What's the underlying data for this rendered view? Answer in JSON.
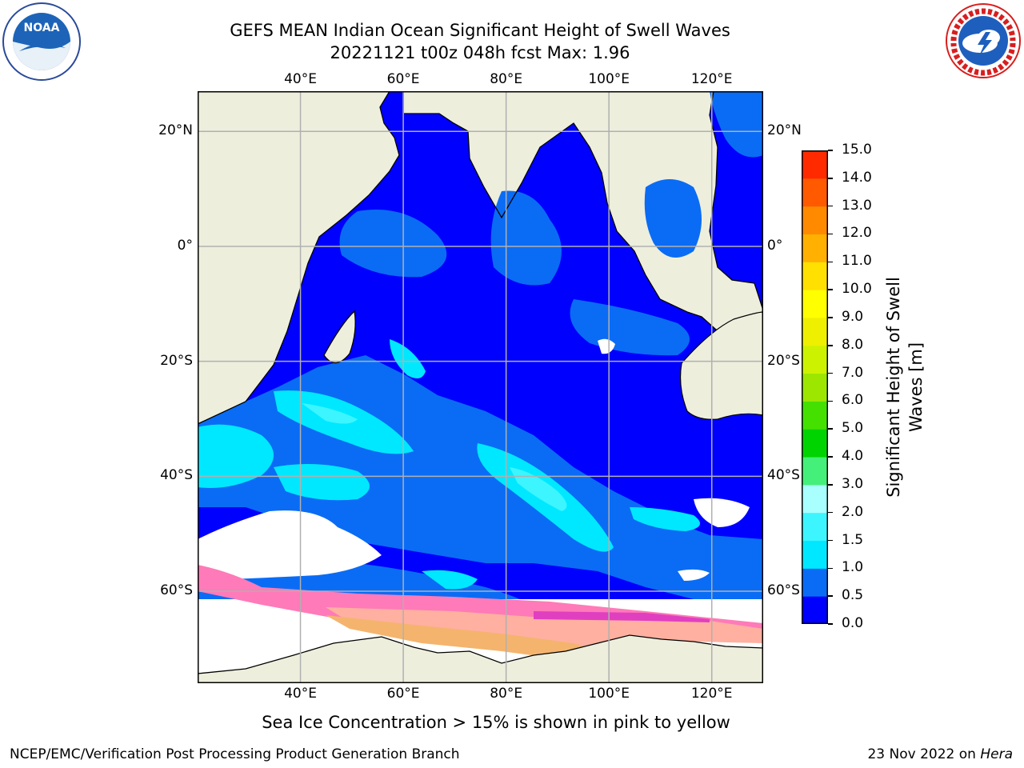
{
  "title": {
    "line1": "GEFS MEAN Indian Ocean Significant Height of Swell Waves",
    "line2": "20221121 t00z 048h fcst   Max: 1.96"
  },
  "logos": {
    "left": {
      "icon": "noaa-logo-icon",
      "text": "NOAA"
    },
    "right": {
      "icon": "nws-logo-icon",
      "ring_text": "NATIONAL WEATHER SERVICE"
    }
  },
  "map": {
    "lon_range": [
      20,
      130
    ],
    "lat_range": [
      -76,
      27
    ],
    "lon_ticks": [
      "40°E",
      "60°E",
      "80°E",
      "100°E",
      "120°E"
    ],
    "lat_ticks": [
      "20°N",
      "0°",
      "20°S",
      "40°S",
      "60°S"
    ],
    "lon_values": [
      40,
      60,
      80,
      100,
      120
    ],
    "lat_values": [
      20,
      0,
      -20,
      -40,
      -60
    ],
    "colors": {
      "land": "#eeeedd",
      "grid": "#b0b0b0",
      "coast": "#000000"
    }
  },
  "colorbar": {
    "title": "Significant Height of Swell Waves [m]",
    "title_line1": "Significant Height of Swell",
    "title_line2": "Waves [m]",
    "tick_labels": [
      "0.0",
      "0.5",
      "1.0",
      "1.5",
      "2.0",
      "3.0",
      "4.0",
      "5.0",
      "6.0",
      "7.0",
      "8.0",
      "9.0",
      "10.0",
      "11.0",
      "12.0",
      "13.0",
      "14.0",
      "15.0"
    ],
    "levels": [
      0.0,
      0.5,
      1.0,
      1.5,
      2.0,
      3.0,
      4.0,
      5.0,
      6.0,
      7.0,
      8.0,
      9.0,
      10.0,
      11.0,
      12.0,
      13.0,
      14.0,
      15.0
    ],
    "colors": [
      "#0000ff",
      "#0a6cf5",
      "#00e8ff",
      "#3cf5ff",
      "#a8fffd",
      "#44f07a",
      "#00d400",
      "#44e000",
      "#9ce600",
      "#ccf200",
      "#eef000",
      "#ffff00",
      "#ffe000",
      "#ffb000",
      "#ff8a00",
      "#ff5a00",
      "#ff2a00",
      "#ff0000"
    ]
  },
  "caption": "Sea Ice Concentration > 15% is shown in pink to yellow",
  "footer": {
    "left": "NCEP/EMC/Verification Post Processing Product Generation Branch",
    "date": "23 Nov 2022 on ",
    "host": "Hera"
  }
}
